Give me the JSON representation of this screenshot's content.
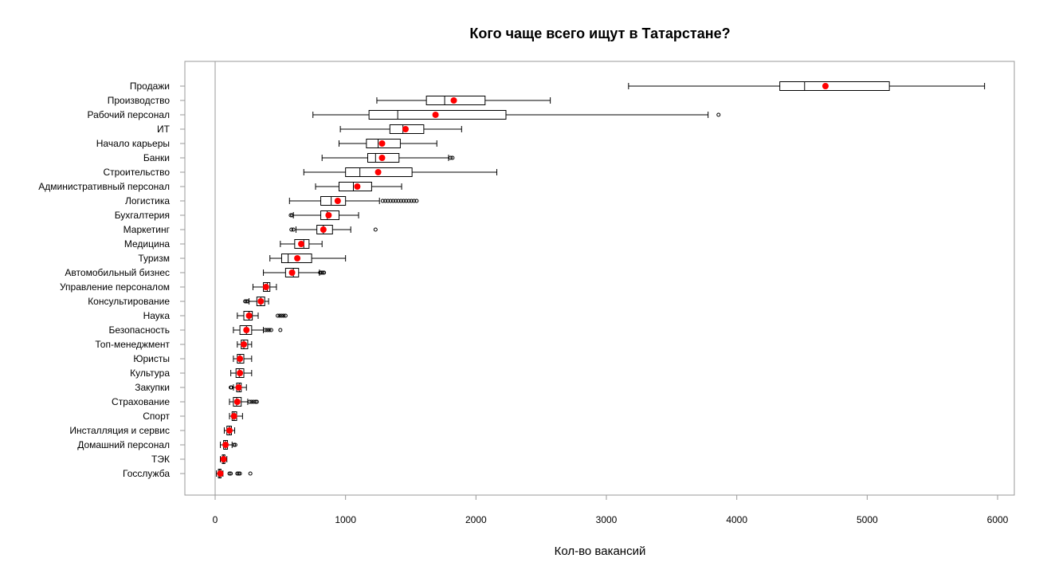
{
  "chart_data": {
    "type": "boxplot",
    "orientation": "horizontal",
    "title": "Кого чаще всего ищут в Татарстане?",
    "xlabel": "Кол-во вакансий",
    "ylabel": "",
    "xlim": [
      -100,
      6150
    ],
    "xticks": [
      0,
      1000,
      2000,
      3000,
      4000,
      5000,
      6000
    ],
    "grid": false,
    "mean_color": "#ff0000",
    "box_color": "#000000",
    "frame_color": "#999999",
    "vline_at": 0,
    "categories": [
      {
        "name": "Продажи",
        "whisker_low": 3170,
        "q1": 4330,
        "median": 4520,
        "q3": 5170,
        "whisker_high": 5900,
        "mean": 4680,
        "outliers": []
      },
      {
        "name": "Производство",
        "whisker_low": 1240,
        "q1": 1620,
        "median": 1760,
        "q3": 2070,
        "whisker_high": 2570,
        "mean": 1830,
        "outliers": []
      },
      {
        "name": "Рабочий персонал",
        "whisker_low": 750,
        "q1": 1180,
        "median": 1400,
        "q3": 2230,
        "whisker_high": 3780,
        "mean": 1690,
        "outliers": [
          3860
        ]
      },
      {
        "name": "ИТ",
        "whisker_low": 960,
        "q1": 1340,
        "median": 1440,
        "q3": 1600,
        "whisker_high": 1890,
        "mean": 1460,
        "outliers": []
      },
      {
        "name": "Начало карьеры",
        "whisker_low": 950,
        "q1": 1160,
        "median": 1250,
        "q3": 1420,
        "whisker_high": 1700,
        "mean": 1280,
        "outliers": []
      },
      {
        "name": "Банки",
        "whisker_low": 820,
        "q1": 1170,
        "median": 1230,
        "q3": 1410,
        "whisker_high": 1790,
        "mean": 1280,
        "outliers": [
          1805,
          1820
        ]
      },
      {
        "name": "Строительство",
        "whisker_low": 680,
        "q1": 1000,
        "median": 1110,
        "q3": 1510,
        "whisker_high": 2160,
        "mean": 1250,
        "outliers": []
      },
      {
        "name": "Административный персонал",
        "whisker_low": 770,
        "q1": 950,
        "median": 1060,
        "q3": 1200,
        "whisker_high": 1430,
        "mean": 1090,
        "outliers": []
      },
      {
        "name": "Логистика",
        "whisker_low": 570,
        "q1": 810,
        "median": 890,
        "q3": 1000,
        "whisker_high": 1260,
        "mean": 940,
        "outliers": [
          1285,
          1305,
          1325,
          1345,
          1365,
          1385,
          1405,
          1425,
          1445,
          1465,
          1485,
          1505,
          1525,
          1545
        ]
      },
      {
        "name": "Бухгалтерия",
        "whisker_low": 600,
        "q1": 810,
        "median": 860,
        "q3": 950,
        "whisker_high": 1100,
        "mean": 870,
        "outliers": [
          580,
          590
        ]
      },
      {
        "name": "Маркетинг",
        "whisker_low": 620,
        "q1": 780,
        "median": 830,
        "q3": 900,
        "whisker_high": 1040,
        "mean": 830,
        "outliers": [
          585,
          600,
          1230
        ]
      },
      {
        "name": "Медицина",
        "whisker_low": 500,
        "q1": 610,
        "median": 680,
        "q3": 720,
        "whisker_high": 820,
        "mean": 660,
        "outliers": []
      },
      {
        "name": "Туризм",
        "whisker_low": 420,
        "q1": 510,
        "median": 560,
        "q3": 740,
        "whisker_high": 1000,
        "mean": 630,
        "outliers": []
      },
      {
        "name": "Автомобильный бизнес",
        "whisker_low": 370,
        "q1": 540,
        "median": 600,
        "q3": 640,
        "whisker_high": 800,
        "mean": 590,
        "outliers": [
          805,
          815,
          825,
          835
        ]
      },
      {
        "name": "Управление персоналом",
        "whisker_low": 290,
        "q1": 370,
        "median": 400,
        "q3": 420,
        "whisker_high": 470,
        "mean": 390,
        "outliers": []
      },
      {
        "name": "Консультирование",
        "whisker_low": 260,
        "q1": 320,
        "median": 350,
        "q3": 380,
        "whisker_high": 410,
        "mean": 350,
        "outliers": [
          230,
          240,
          250
        ]
      },
      {
        "name": "Наука",
        "whisker_low": 170,
        "q1": 220,
        "median": 260,
        "q3": 285,
        "whisker_high": 330,
        "mean": 260,
        "outliers": [
          480,
          495,
          510,
          525,
          540
        ]
      },
      {
        "name": "Безопасность",
        "whisker_low": 140,
        "q1": 190,
        "median": 240,
        "q3": 280,
        "whisker_high": 370,
        "mean": 240,
        "outliers": [
          385,
          400,
          415,
          430,
          500
        ]
      },
      {
        "name": "Топ-менеджмент",
        "whisker_low": 170,
        "q1": 200,
        "median": 220,
        "q3": 250,
        "whisker_high": 280,
        "mean": 220,
        "outliers": []
      },
      {
        "name": "Юристы",
        "whisker_low": 140,
        "q1": 170,
        "median": 190,
        "q3": 220,
        "whisker_high": 280,
        "mean": 190,
        "outliers": []
      },
      {
        "name": "Культура",
        "whisker_low": 120,
        "q1": 160,
        "median": 185,
        "q3": 220,
        "whisker_high": 280,
        "mean": 190,
        "outliers": []
      },
      {
        "name": "Закупки",
        "whisker_low": 140,
        "q1": 165,
        "median": 185,
        "q3": 200,
        "whisker_high": 240,
        "mean": 180,
        "outliers": [
          120,
          125
        ]
      },
      {
        "name": "Страхование",
        "whisker_low": 110,
        "q1": 140,
        "median": 165,
        "q3": 200,
        "whisker_high": 250,
        "mean": 170,
        "outliers": [
          265,
          280,
          295,
          310,
          320
        ]
      },
      {
        "name": "Спорт",
        "whisker_low": 110,
        "q1": 130,
        "median": 145,
        "q3": 165,
        "whisker_high": 210,
        "mean": 145,
        "outliers": []
      },
      {
        "name": "Инсталляция и сервис",
        "whisker_low": 70,
        "q1": 90,
        "median": 110,
        "q3": 125,
        "whisker_high": 150,
        "mean": 110,
        "outliers": []
      },
      {
        "name": "Домашний персонал",
        "whisker_low": 40,
        "q1": 65,
        "median": 80,
        "q3": 95,
        "whisker_high": 130,
        "mean": 80,
        "outliers": [
          145,
          155
        ]
      },
      {
        "name": "ТЭК",
        "whisker_low": 40,
        "q1": 55,
        "median": 65,
        "q3": 75,
        "whisker_high": 90,
        "mean": 65,
        "outliers": []
      },
      {
        "name": "Госслужба",
        "whisker_low": 10,
        "q1": 25,
        "median": 35,
        "q3": 45,
        "whisker_high": 60,
        "mean": 40,
        "outliers": [
          110,
          120,
          170,
          180,
          190,
          270
        ]
      }
    ]
  }
}
